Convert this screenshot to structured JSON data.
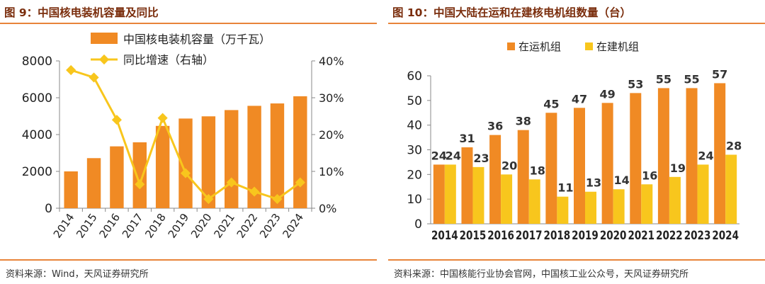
{
  "colors": {
    "orange": "#f08a24",
    "yellow": "#f8c61d",
    "title": "#7a2d0c",
    "rule": "#e8843a"
  },
  "charts": {
    "left": {
      "title": "图 9：中国核电装机容量及同比",
      "source": "资料来源：Wind，天风证券研究所"
    },
    "right": {
      "title": "图 10：中国大陆在运和在建核电机组数量（台）",
      "source": "资料来源：中国核能行业协会官网，中国核工业公众号，天风证券研究所"
    }
  },
  "chart_data": [
    {
      "type": "bar",
      "title": "图 9：中国核电装机容量及同比",
      "categories": [
        "2014",
        "2015",
        "2016",
        "2017",
        "2018",
        "2019",
        "2020",
        "2021",
        "2022",
        "2023",
        "2024"
      ],
      "series": [
        {
          "name": "中国核电装机容量（万千瓦）",
          "type": "bar",
          "axis": "left",
          "values": [
            2000,
            2720,
            3360,
            3580,
            4470,
            4870,
            4990,
            5330,
            5560,
            5690,
            6080
          ]
        },
        {
          "name": "同比增速（右轴）",
          "type": "line",
          "axis": "right",
          "values": [
            37.5,
            35.5,
            24.0,
            6.5,
            24.5,
            9.5,
            2.5,
            7.0,
            4.5,
            2.5,
            7.0
          ]
        }
      ],
      "y_left": {
        "min": 0,
        "max": 8000,
        "ticks": [
          0,
          2000,
          4000,
          6000,
          8000
        ]
      },
      "y_right": {
        "min": 0,
        "max": 40,
        "ticks": [
          "0%",
          "10%",
          "20%",
          "30%",
          "40%"
        ]
      },
      "legend": "top-left",
      "grid": false
    },
    {
      "type": "bar",
      "title": "图 10：中国大陆在运和在建核电机组数量（台）",
      "categories": [
        "2014",
        "2015",
        "2016",
        "2017",
        "2018",
        "2019",
        "2020",
        "2021",
        "2022",
        "2023",
        "2024"
      ],
      "series": [
        {
          "name": "在运机组",
          "values": [
            24,
            31,
            36,
            38,
            45,
            47,
            49,
            53,
            55,
            55,
            57
          ]
        },
        {
          "name": "在建机组",
          "values": [
            24,
            23,
            20,
            18,
            11,
            13,
            14,
            16,
            19,
            24,
            28
          ]
        }
      ],
      "ylim": [
        0,
        60
      ],
      "y_ticks": [
        0,
        10,
        20,
        30,
        40,
        50,
        60
      ],
      "legend": "top-left",
      "grid": false
    }
  ]
}
